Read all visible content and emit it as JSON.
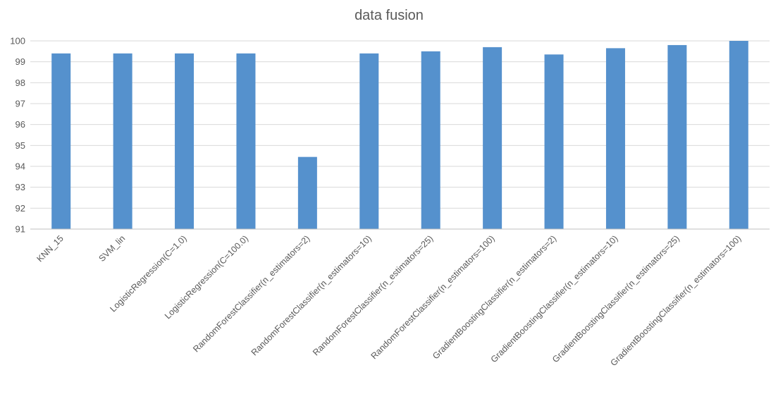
{
  "chart_data": {
    "type": "bar",
    "title": "data fusion",
    "xlabel": "",
    "ylabel": "",
    "ylim": [
      91,
      100
    ],
    "yticks": [
      91,
      92,
      93,
      94,
      95,
      96,
      97,
      98,
      99,
      100
    ],
    "grid": true,
    "legend": "none",
    "bar_color": "#5591CD",
    "categories": [
      "KNN_15",
      "SVM_lin",
      "LogisticRegression(C=1.0)",
      "LogisticRegression(C=100.0)",
      "RandomForestClassifier(n_estimators=2)",
      "RandomForestClassifier(n_estimators=10)",
      "RandomForestClassifier(n_estimators=25)",
      "RandomForestClassifier(n_estimators=100)",
      "GradientBoostingClassifier(n_estimators=2)",
      "GradientBoostingClassifier(n_estimators=10)",
      "GradientBoostingClassifier(n_estimators=25)",
      "GradientBoostingClassifier(n_estimators=100)"
    ],
    "values": [
      99.4,
      99.4,
      99.4,
      99.4,
      94.45,
      99.4,
      99.5,
      99.7,
      99.35,
      99.65,
      99.8,
      100.0
    ]
  }
}
